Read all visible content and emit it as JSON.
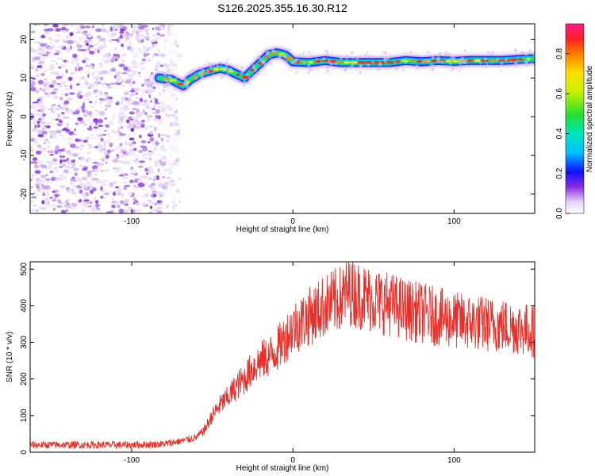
{
  "figure_title": "S126.2025.355.16.30.R12",
  "chart_data": [
    {
      "type": "heatmap",
      "title": "S126.2025.355.16.30.R12",
      "xlabel": "Height of straight line (km)",
      "ylabel": "Frequency (Hz)",
      "xlim": [
        -163,
        150
      ],
      "ylim": [
        -25,
        24
      ],
      "xticks": [
        -100,
        0,
        100
      ],
      "yticks": [
        -20,
        -10,
        0,
        10,
        20
      ],
      "colorbar": {
        "label": "Normalized spectral amplitude",
        "range": [
          0,
          0.95
        ],
        "ticks": [
          0.0,
          0.2,
          0.4,
          0.6,
          0.8
        ]
      },
      "noise_region_x": [
        -163,
        -80
      ],
      "ridge": {
        "x": [
          -83,
          -75,
          -68,
          -64,
          -58,
          -50,
          -45,
          -40,
          -35,
          -30,
          -25,
          -20,
          -15,
          -10,
          -5,
          -2,
          0,
          10,
          20,
          30,
          40,
          50,
          60,
          70,
          80,
          90,
          100,
          110,
          120,
          130,
          140,
          150
        ],
        "y": [
          10,
          9.5,
          8,
          9.5,
          11,
          12,
          12.5,
          12,
          11,
          10,
          12,
          14,
          16,
          16.5,
          16,
          15,
          14.2,
          14,
          14.5,
          14,
          14,
          14,
          14,
          14.5,
          14.2,
          14.5,
          14.3,
          14.5,
          14.5,
          14.5,
          14.8,
          15
        ]
      }
    },
    {
      "type": "line",
      "xlabel": "Height of straight line (km)",
      "ylabel": "SNR (10 * v/v)",
      "xlim": [
        -163,
        150
      ],
      "ylim": [
        0,
        520
      ],
      "xticks": [
        -100,
        0,
        100
      ],
      "yticks": [
        0,
        100,
        200,
        300,
        400,
        500
      ],
      "color": "#e8302a",
      "series": [
        {
          "name": "SNR",
          "x": [
            -163,
            -140,
            -120,
            -100,
            -80,
            -70,
            -60,
            -55,
            -50,
            -45,
            -40,
            -35,
            -30,
            -25,
            -20,
            -15,
            -10,
            -5,
            0,
            10,
            20,
            30,
            35,
            40,
            50,
            60,
            70,
            80,
            90,
            100,
            110,
            120,
            130,
            140,
            150
          ],
          "y": [
            20,
            20,
            20,
            20,
            22,
            30,
            40,
            60,
            100,
            130,
            150,
            180,
            200,
            230,
            250,
            260,
            280,
            310,
            340,
            370,
            400,
            420,
            440,
            430,
            415,
            405,
            390,
            380,
            370,
            360,
            355,
            350,
            345,
            340,
            330
          ]
        }
      ]
    }
  ]
}
